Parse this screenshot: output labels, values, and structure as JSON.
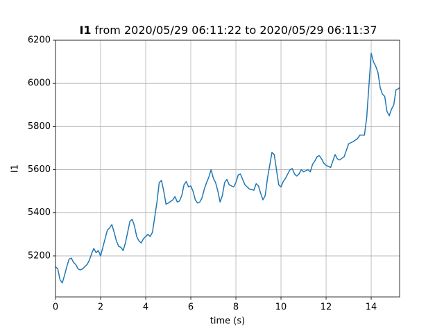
{
  "chart_data": {
    "type": "line",
    "title_label": "I1",
    "title": "from 2020/05/29 06:11:22 to 2020/05/29 06:11:37",
    "x_label": "time (s)",
    "y_label": "I1",
    "xlim": [
      0,
      15.26
    ],
    "ylim": [
      5010,
      6200
    ],
    "xticks": [
      0,
      2,
      4,
      6,
      8,
      10,
      12,
      14
    ],
    "yticks": [
      5200,
      5400,
      5600,
      5800,
      6000,
      6200
    ],
    "grid": true,
    "x": [
      0,
      0.1,
      0.2,
      0.3,
      0.4,
      0.5,
      0.6,
      0.7,
      0.8,
      0.9,
      1.0,
      1.1,
      1.2,
      1.4,
      1.5,
      1.6,
      1.7,
      1.8,
      1.9,
      2.0,
      2.1,
      2.2,
      2.3,
      2.4,
      2.5,
      2.6,
      2.7,
      2.8,
      2.9,
      3.0,
      3.1,
      3.2,
      3.3,
      3.4,
      3.5,
      3.6,
      3.7,
      3.8,
      3.9,
      4.0,
      4.1,
      4.2,
      4.3,
      4.4,
      4.5,
      4.6,
      4.7,
      4.8,
      4.9,
      5.0,
      5.2,
      5.3,
      5.4,
      5.5,
      5.6,
      5.7,
      5.8,
      5.9,
      6.0,
      6.1,
      6.2,
      6.3,
      6.4,
      6.5,
      6.6,
      6.7,
      6.8,
      6.9,
      7.0,
      7.1,
      7.2,
      7.3,
      7.4,
      7.5,
      7.6,
      7.7,
      7.8,
      7.9,
      8.0,
      8.1,
      8.2,
      8.3,
      8.4,
      8.5,
      8.6,
      8.8,
      8.9,
      9.0,
      9.1,
      9.2,
      9.3,
      9.4,
      9.5,
      9.6,
      9.7,
      9.8,
      9.9,
      10.0,
      10.1,
      10.2,
      10.3,
      10.4,
      10.5,
      10.6,
      10.7,
      10.8,
      10.9,
      11.0,
      11.2,
      11.3,
      11.4,
      11.5,
      11.6,
      11.7,
      11.8,
      11.9,
      12.0,
      12.2,
      12.3,
      12.4,
      12.5,
      12.6,
      12.8,
      12.9,
      13.0,
      13.2,
      13.4,
      13.5,
      13.7,
      13.8,
      13.9,
      14.0,
      14.1,
      14.2,
      14.3,
      14.4,
      14.5,
      14.6,
      14.7,
      14.8,
      14.9,
      15.0,
      15.1,
      15.2,
      15.26
    ],
    "series": [
      {
        "color": "#1f77b4",
        "values": [
          5150,
          5140,
          5090,
          5075,
          5110,
          5150,
          5185,
          5190,
          5170,
          5160,
          5140,
          5135,
          5140,
          5160,
          5180,
          5210,
          5235,
          5215,
          5225,
          5200,
          5240,
          5280,
          5320,
          5330,
          5345,
          5310,
          5270,
          5245,
          5240,
          5225,
          5260,
          5310,
          5360,
          5370,
          5340,
          5290,
          5270,
          5260,
          5280,
          5290,
          5300,
          5290,
          5310,
          5380,
          5450,
          5540,
          5550,
          5500,
          5440,
          5445,
          5460,
          5475,
          5450,
          5455,
          5480,
          5530,
          5545,
          5520,
          5525,
          5500,
          5460,
          5445,
          5450,
          5470,
          5510,
          5540,
          5565,
          5600,
          5560,
          5540,
          5500,
          5450,
          5480,
          5540,
          5555,
          5530,
          5525,
          5520,
          5540,
          5575,
          5580,
          5555,
          5530,
          5520,
          5510,
          5505,
          5535,
          5525,
          5490,
          5460,
          5480,
          5560,
          5620,
          5680,
          5670,
          5600,
          5530,
          5520,
          5545,
          5560,
          5580,
          5600,
          5605,
          5580,
          5570,
          5580,
          5600,
          5590,
          5600,
          5590,
          5625,
          5640,
          5660,
          5665,
          5650,
          5630,
          5620,
          5610,
          5640,
          5670,
          5650,
          5645,
          5660,
          5690,
          5720,
          5730,
          5745,
          5760,
          5760,
          5840,
          5990,
          6140,
          6100,
          6080,
          6050,
          5980,
          5950,
          5940,
          5870,
          5850,
          5880,
          5900,
          5970,
          5975,
          5980
        ]
      }
    ]
  }
}
